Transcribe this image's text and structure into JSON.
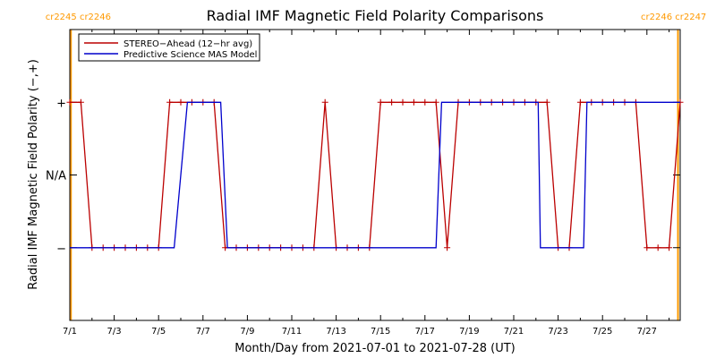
{
  "chart_data": {
    "type": "line",
    "title": "Radial IMF Magnetic Field Polarity Comparisons",
    "xlabel": "Month/Day from 2021-07-01 to 2021-07-28 (UT)",
    "ylabel": "Radial IMF Magnetic Field Polarity (−,+)",
    "x_tick_labels": [
      "7/1",
      "7/3",
      "7/5",
      "7/7",
      "7/9",
      "7/11",
      "7/13",
      "7/15",
      "7/17",
      "7/19",
      "7/21",
      "7/23",
      "7/25",
      "7/27"
    ],
    "x_tick_days": [
      0,
      2,
      4,
      6,
      8,
      10,
      12,
      14,
      16,
      18,
      20,
      22,
      24,
      26
    ],
    "xlim": [
      0,
      27.5
    ],
    "y_tick_labels": [
      "−",
      "N/A",
      "+"
    ],
    "y_tick_values": [
      -1,
      0,
      1
    ],
    "ylim": [
      -2,
      2
    ],
    "carrington": [
      {
        "labels": [
          "cr2245",
          "cr2246"
        ],
        "x": 0.05,
        "align": "end"
      },
      {
        "labels": [
          "cr2246",
          "cr2247"
        ],
        "x": 27.4,
        "align": "start"
      }
    ],
    "legend_position": "top-left",
    "series": [
      {
        "name": "STEREO−Ahead (12−hr avg)",
        "color": "#bb0000",
        "marker": "plus",
        "points": [
          [
            0.0,
            1
          ],
          [
            0.5,
            1
          ],
          [
            1.0,
            -1
          ],
          [
            1.5,
            -1
          ],
          [
            2.0,
            -1
          ],
          [
            2.5,
            -1
          ],
          [
            3.0,
            -1
          ],
          [
            3.5,
            -1
          ],
          [
            4.0,
            -1
          ],
          [
            4.5,
            1
          ],
          [
            5.0,
            1
          ],
          [
            5.5,
            1
          ],
          [
            6.0,
            1
          ],
          [
            6.5,
            1
          ],
          [
            7.0,
            -1
          ],
          [
            7.5,
            -1
          ],
          [
            8.0,
            -1
          ],
          [
            8.5,
            -1
          ],
          [
            9.0,
            -1
          ],
          [
            9.5,
            -1
          ],
          [
            10.0,
            -1
          ],
          [
            10.5,
            -1
          ],
          [
            11.0,
            -1
          ],
          [
            11.5,
            1
          ],
          [
            12.0,
            -1
          ],
          [
            12.5,
            -1
          ],
          [
            13.0,
            -1
          ],
          [
            13.5,
            -1
          ],
          [
            14.0,
            1
          ],
          [
            14.5,
            1
          ],
          [
            15.0,
            1
          ],
          [
            15.5,
            1
          ],
          [
            16.0,
            1
          ],
          [
            16.5,
            1
          ],
          [
            17.0,
            -1
          ],
          [
            17.5,
            1
          ],
          [
            18.0,
            1
          ],
          [
            18.5,
            1
          ],
          [
            19.0,
            1
          ],
          [
            19.5,
            1
          ],
          [
            20.0,
            1
          ],
          [
            20.5,
            1
          ],
          [
            21.0,
            1
          ],
          [
            21.5,
            1
          ],
          [
            22.0,
            -1
          ],
          [
            22.5,
            -1
          ],
          [
            23.0,
            1
          ],
          [
            23.5,
            1
          ],
          [
            24.0,
            1
          ],
          [
            24.5,
            1
          ],
          [
            25.0,
            1
          ],
          [
            25.5,
            1
          ],
          [
            26.0,
            -1
          ],
          [
            26.5,
            -1
          ],
          [
            27.0,
            -1
          ],
          [
            27.5,
            1
          ]
        ]
      },
      {
        "name": "Predictive Science MAS Model",
        "color": "#0000cc",
        "marker": "none",
        "points": [
          [
            0,
            -1
          ],
          [
            4.7,
            -1
          ],
          [
            5.3,
            1
          ],
          [
            6.8,
            1
          ],
          [
            7.1,
            -1
          ],
          [
            16.5,
            -1
          ],
          [
            16.75,
            1
          ],
          [
            21.1,
            1
          ],
          [
            21.2,
            -1
          ],
          [
            23.15,
            -1
          ],
          [
            23.3,
            1
          ],
          [
            27.5,
            1
          ]
        ]
      }
    ]
  }
}
